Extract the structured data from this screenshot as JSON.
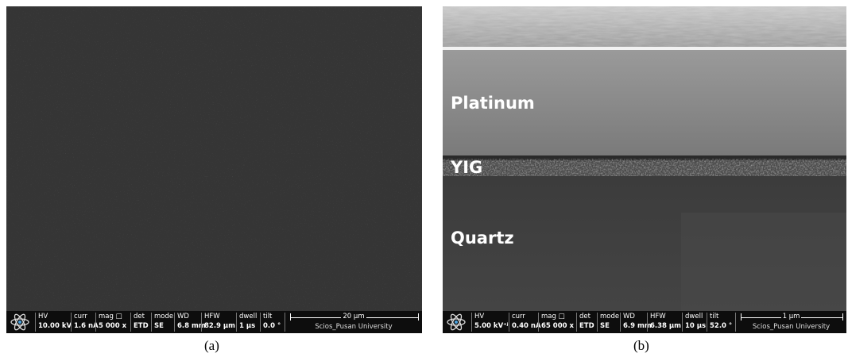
{
  "panels": [
    {
      "label": "(a)",
      "infobar": [
        {
          "name": "HV",
          "value": "10.00 kV"
        },
        {
          "name": "curr",
          "value": "1.6 nA"
        },
        {
          "name": "mag □",
          "value": "5 000 x"
        },
        {
          "name": "det",
          "value": "ETD"
        },
        {
          "name": "mode",
          "value": "SE"
        },
        {
          "name": "WD",
          "value": "6.8 mm"
        },
        {
          "name": "HFW",
          "value": "82.9 µm"
        },
        {
          "name": "dwell",
          "value": "1 µs"
        },
        {
          "name": "tilt",
          "value": "0.0 °"
        }
      ],
      "scalebar": "20 µm",
      "institution": "Scios_Pusan University"
    },
    {
      "label": "(b)",
      "infobar": [
        {
          "name": "HV",
          "value": "5.00 kV⁺ʲ"
        },
        {
          "name": "curr",
          "value": "0.40 nA"
        },
        {
          "name": "mag □",
          "value": "65 000 x"
        },
        {
          "name": "det",
          "value": "ETD"
        },
        {
          "name": "mode",
          "value": "SE"
        },
        {
          "name": "WD",
          "value": "6.9 mm"
        },
        {
          "name": "HFW",
          "value": "6.38 µm"
        },
        {
          "name": "dwell",
          "value": "10 µs"
        },
        {
          "name": "tilt",
          "value": "52.0 °"
        }
      ],
      "scalebar": "1 µm",
      "institution": "Scios_Pusan University",
      "layers": [
        "Platinum",
        "YIG",
        "Quartz"
      ]
    }
  ]
}
